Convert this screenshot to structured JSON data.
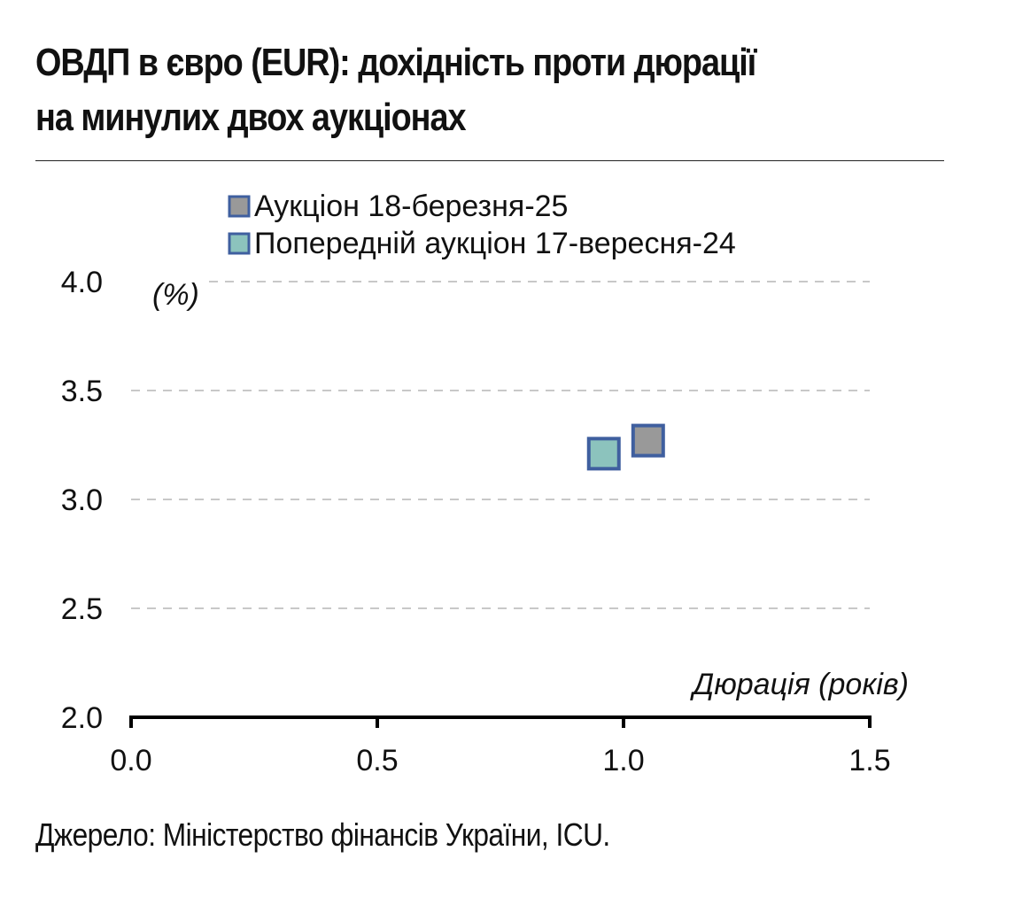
{
  "title_line1": "ОВДП в євро (EUR): дохідність проти дюрації",
  "title_line2": "на минулих двох аукціонах",
  "source": "Джерело: Міністерство фінансів України, ICU.",
  "chart_data": {
    "type": "scatter",
    "title": "ОВДП в євро (EUR): дохідність проти дюрації на минулих двох аукціонах",
    "xlabel": "Дюрація (років)",
    "ylabel": "(%)",
    "xlim": [
      0.0,
      1.5
    ],
    "ylim": [
      2.0,
      4.0
    ],
    "x_ticks": [
      "0.0",
      "0.5",
      "1.0",
      "1.5"
    ],
    "y_ticks": [
      "2.0",
      "2.5",
      "3.0",
      "3.5",
      "4.0"
    ],
    "x_tick_values": [
      0.0,
      0.5,
      1.0,
      1.5
    ],
    "y_tick_values": [
      2.0,
      2.5,
      3.0,
      3.5,
      4.0
    ],
    "grid": "horizontal dashed",
    "legend_position": "top-left",
    "series": [
      {
        "name": "Аукціон 18-березня-25",
        "color": "#999999",
        "border": "#3f5f9f",
        "points": [
          {
            "x": 1.05,
            "y": 3.27
          }
        ]
      },
      {
        "name": "Попередній аукціон 17-вересня-24",
        "color": "#8cc3bd",
        "border": "#3f5f9f",
        "points": [
          {
            "x": 0.96,
            "y": 3.21
          }
        ]
      }
    ]
  }
}
